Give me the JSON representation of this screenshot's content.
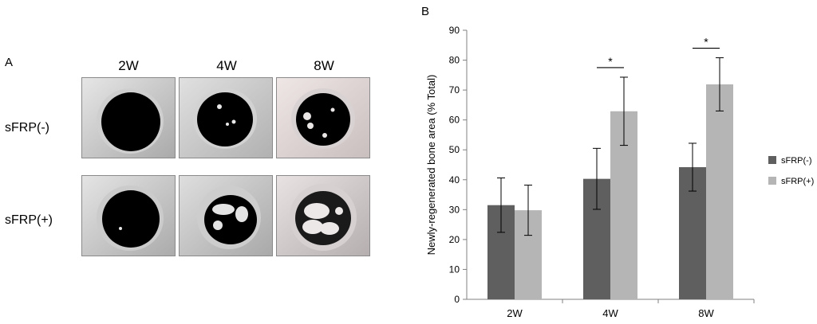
{
  "panel_a": {
    "label": "A",
    "columns": [
      "2W",
      "4W",
      "8W"
    ],
    "rows": [
      "sFRP(-)",
      "sFRP(+)"
    ]
  },
  "panel_b": {
    "label": "B"
  },
  "colors": {
    "series_minus": "#5f5f5f",
    "series_plus": "#b5b5b5",
    "axis": "#808080"
  },
  "chart_data": {
    "type": "bar",
    "categories": [
      "2W",
      "4W",
      "8W"
    ],
    "ylabel": "Newly-regenerated bone area (% Total)",
    "xlabel": "",
    "ylim": [
      0,
      90
    ],
    "yticks": [
      0,
      10,
      20,
      30,
      40,
      50,
      60,
      70,
      80,
      90
    ],
    "grid": false,
    "legend_position": "right",
    "series": [
      {
        "name": "sFRP(-)",
        "values": [
          31.5,
          40.3,
          44.2
        ],
        "errors": [
          9.1,
          10.2,
          8.0
        ]
      },
      {
        "name": "sFRP(+)",
        "values": [
          29.8,
          62.9,
          71.9
        ],
        "errors": [
          8.4,
          11.4,
          8.9
        ]
      }
    ],
    "significance": [
      {
        "category": "4W",
        "marker": "*"
      },
      {
        "category": "8W",
        "marker": "*"
      }
    ]
  }
}
